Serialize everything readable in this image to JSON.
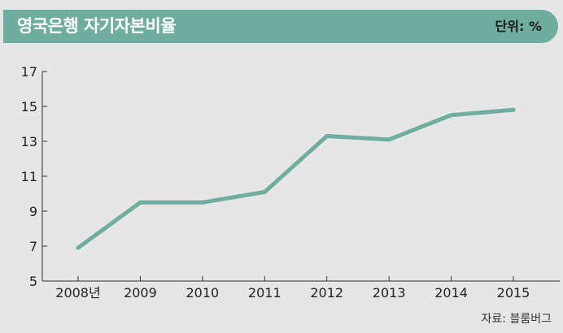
{
  "header": {
    "title": "영국은행 자기자본비율",
    "unit": "단위: %"
  },
  "source": "자료: 블룸버그",
  "colors": {
    "header_bg": "#6fae9f",
    "line": "#6fae9f",
    "background": "#e6e6e6",
    "axis": "#333333"
  },
  "chart_data": {
    "type": "line",
    "title": "영국은행 자기자본비율",
    "xlabel": "",
    "ylabel": "",
    "categories": [
      "2008년",
      "2009",
      "2010",
      "2011",
      "2012",
      "2013",
      "2014",
      "2015"
    ],
    "series": [
      {
        "values": [
          6.9,
          9.5,
          9.5,
          10.1,
          13.3,
          13.1,
          14.5,
          14.8
        ]
      }
    ],
    "ylim": [
      5,
      17
    ],
    "yticks": [
      "5",
      "7",
      "9",
      "11",
      "13",
      "15",
      "17"
    ],
    "grid": false
  }
}
